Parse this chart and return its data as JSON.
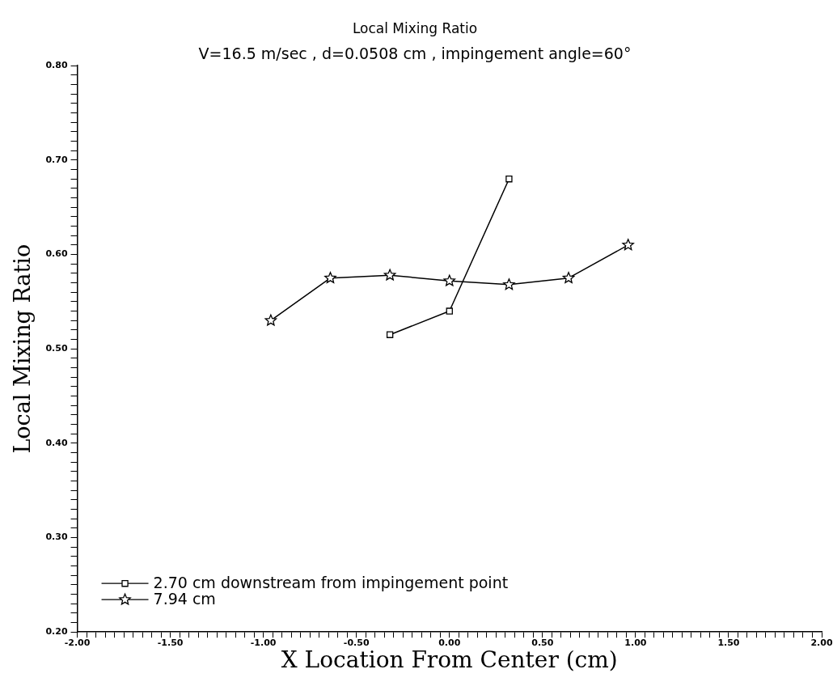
{
  "chart_data": {
    "type": "line",
    "title": "Local Mixing Ratio",
    "subtitle": "V=16.5 m/sec , d=0.0508 cm , impingement angle=60°",
    "xlabel": "X Location From Center (cm)",
    "ylabel": "Local Mixing Ratio",
    "series": [
      {
        "name": "2.70 cm downstream from impingement point",
        "color": "#000000",
        "marker": "square",
        "x": [
          -0.32,
          0,
          0.32
        ],
        "values": [
          0.515,
          0.54,
          0.68
        ]
      },
      {
        "name": "7.94 cm",
        "color": "#000000",
        "marker": "star",
        "x": [
          -0.96,
          -0.64,
          -0.32,
          0,
          0.32,
          0.64,
          0.96
        ],
        "values": [
          0.53,
          0.575,
          0.578,
          0.572,
          0.568,
          0.575,
          0.61
        ]
      }
    ],
    "xlim": [
      -2,
      2
    ],
    "ylim": [
      0.2,
      0.8
    ],
    "xticks": [
      {
        "value": -2,
        "label": "-2.00"
      },
      {
        "value": -1.95,
        "label": null
      },
      {
        "value": -1.9,
        "label": null
      },
      {
        "value": -1.85,
        "label": null
      },
      {
        "value": -1.8,
        "label": null
      },
      {
        "value": -1.75,
        "label": null
      },
      {
        "value": -1.7,
        "label": null
      },
      {
        "value": -1.65,
        "label": null
      },
      {
        "value": -1.6,
        "label": null
      },
      {
        "value": -1.55,
        "label": null
      },
      {
        "value": -1.5,
        "label": "-1.50"
      },
      {
        "value": -1.45,
        "label": null
      },
      {
        "value": -1.4,
        "label": null
      },
      {
        "value": -1.35,
        "label": null
      },
      {
        "value": -1.3,
        "label": null
      },
      {
        "value": -1.25,
        "label": null
      },
      {
        "value": -1.2,
        "label": null
      },
      {
        "value": -1.15,
        "label": null
      },
      {
        "value": -1.1,
        "label": null
      },
      {
        "value": -1.05,
        "label": null
      },
      {
        "value": -1,
        "label": "-1.00"
      },
      {
        "value": -0.95,
        "label": null
      },
      {
        "value": -0.9,
        "label": null
      },
      {
        "value": -0.85,
        "label": null
      },
      {
        "value": -0.8,
        "label": null
      },
      {
        "value": -0.75,
        "label": null
      },
      {
        "value": -0.7,
        "label": null
      },
      {
        "value": -0.65,
        "label": null
      },
      {
        "value": -0.6,
        "label": null
      },
      {
        "value": -0.55,
        "label": null
      },
      {
        "value": -0.5,
        "label": "-0.50"
      },
      {
        "value": -0.45,
        "label": null
      },
      {
        "value": -0.4,
        "label": null
      },
      {
        "value": -0.35,
        "label": null
      },
      {
        "value": -0.3,
        "label": null
      },
      {
        "value": -0.25,
        "label": null
      },
      {
        "value": -0.2,
        "label": null
      },
      {
        "value": -0.15,
        "label": null
      },
      {
        "value": -0.1,
        "label": null
      },
      {
        "value": -0.05,
        "label": null
      },
      {
        "value": 0,
        "label": "0.00"
      },
      {
        "value": 0.05,
        "label": null
      },
      {
        "value": 0.1,
        "label": null
      },
      {
        "value": 0.15,
        "label": null
      },
      {
        "value": 0.2,
        "label": null
      },
      {
        "value": 0.25,
        "label": null
      },
      {
        "value": 0.3,
        "label": null
      },
      {
        "value": 0.35,
        "label": null
      },
      {
        "value": 0.4,
        "label": null
      },
      {
        "value": 0.45,
        "label": null
      },
      {
        "value": 0.5,
        "label": "0.50"
      },
      {
        "value": 0.55,
        "label": null
      },
      {
        "value": 0.6,
        "label": null
      },
      {
        "value": 0.65,
        "label": null
      },
      {
        "value": 0.7,
        "label": null
      },
      {
        "value": 0.75,
        "label": null
      },
      {
        "value": 0.8,
        "label": null
      },
      {
        "value": 0.85,
        "label": null
      },
      {
        "value": 0.9,
        "label": null
      },
      {
        "value": 0.95,
        "label": null
      },
      {
        "value": 1,
        "label": "1.00"
      },
      {
        "value": 1.05,
        "label": null
      },
      {
        "value": 1.1,
        "label": null
      },
      {
        "value": 1.15,
        "label": null
      },
      {
        "value": 1.2,
        "label": null
      },
      {
        "value": 1.25,
        "label": null
      },
      {
        "value": 1.3,
        "label": null
      },
      {
        "value": 1.35,
        "label": null
      },
      {
        "value": 1.4,
        "label": null
      },
      {
        "value": 1.45,
        "label": null
      },
      {
        "value": 1.5,
        "label": "1.50"
      },
      {
        "value": 1.55,
        "label": null
      },
      {
        "value": 1.6,
        "label": null
      },
      {
        "value": 1.65,
        "label": null
      },
      {
        "value": 1.7,
        "label": null
      },
      {
        "value": 1.75,
        "label": null
      },
      {
        "value": 1.8,
        "label": null
      },
      {
        "value": 1.85,
        "label": null
      },
      {
        "value": 1.9,
        "label": null
      },
      {
        "value": 1.95,
        "label": null
      },
      {
        "value": 2,
        "label": "2.00"
      }
    ],
    "yticks": [
      {
        "value": 0.2,
        "label": "0.20"
      },
      {
        "value": 0.21,
        "label": null
      },
      {
        "value": 0.22,
        "label": null
      },
      {
        "value": 0.23,
        "label": null
      },
      {
        "value": 0.24,
        "label": null
      },
      {
        "value": 0.25,
        "label": null
      },
      {
        "value": 0.26,
        "label": null
      },
      {
        "value": 0.27,
        "label": null
      },
      {
        "value": 0.28,
        "label": null
      },
      {
        "value": 0.29,
        "label": null
      },
      {
        "value": 0.3,
        "label": "0.30"
      },
      {
        "value": 0.31,
        "label": null
      },
      {
        "value": 0.32,
        "label": null
      },
      {
        "value": 0.33,
        "label": null
      },
      {
        "value": 0.34,
        "label": null
      },
      {
        "value": 0.35,
        "label": null
      },
      {
        "value": 0.36,
        "label": null
      },
      {
        "value": 0.37,
        "label": null
      },
      {
        "value": 0.38,
        "label": null
      },
      {
        "value": 0.39,
        "label": null
      },
      {
        "value": 0.4,
        "label": "0.40"
      },
      {
        "value": 0.41,
        "label": null
      },
      {
        "value": 0.42,
        "label": null
      },
      {
        "value": 0.43,
        "label": null
      },
      {
        "value": 0.44,
        "label": null
      },
      {
        "value": 0.45,
        "label": null
      },
      {
        "value": 0.46,
        "label": null
      },
      {
        "value": 0.47,
        "label": null
      },
      {
        "value": 0.48,
        "label": null
      },
      {
        "value": 0.49,
        "label": null
      },
      {
        "value": 0.5,
        "label": "0.50"
      },
      {
        "value": 0.51,
        "label": null
      },
      {
        "value": 0.52,
        "label": null
      },
      {
        "value": 0.53,
        "label": null
      },
      {
        "value": 0.54,
        "label": null
      },
      {
        "value": 0.55,
        "label": null
      },
      {
        "value": 0.56,
        "label": null
      },
      {
        "value": 0.57,
        "label": null
      },
      {
        "value": 0.58,
        "label": null
      },
      {
        "value": 0.59,
        "label": null
      },
      {
        "value": 0.6,
        "label": "0.60"
      },
      {
        "value": 0.61,
        "label": null
      },
      {
        "value": 0.62,
        "label": null
      },
      {
        "value": 0.63,
        "label": null
      },
      {
        "value": 0.64,
        "label": null
      },
      {
        "value": 0.65,
        "label": null
      },
      {
        "value": 0.66,
        "label": null
      },
      {
        "value": 0.67,
        "label": null
      },
      {
        "value": 0.68,
        "label": null
      },
      {
        "value": 0.69,
        "label": null
      },
      {
        "value": 0.7,
        "label": "0.70"
      },
      {
        "value": 0.71,
        "label": null
      },
      {
        "value": 0.72,
        "label": null
      },
      {
        "value": 0.73,
        "label": null
      },
      {
        "value": 0.74,
        "label": null
      },
      {
        "value": 0.75,
        "label": null
      },
      {
        "value": 0.76,
        "label": null
      },
      {
        "value": 0.77,
        "label": null
      },
      {
        "value": 0.78,
        "label": null
      },
      {
        "value": 0.79,
        "label": null
      },
      {
        "value": 0.8,
        "label": "0.80"
      }
    ],
    "grid": false,
    "legend": "bottom left",
    "line_style": "solid"
  }
}
